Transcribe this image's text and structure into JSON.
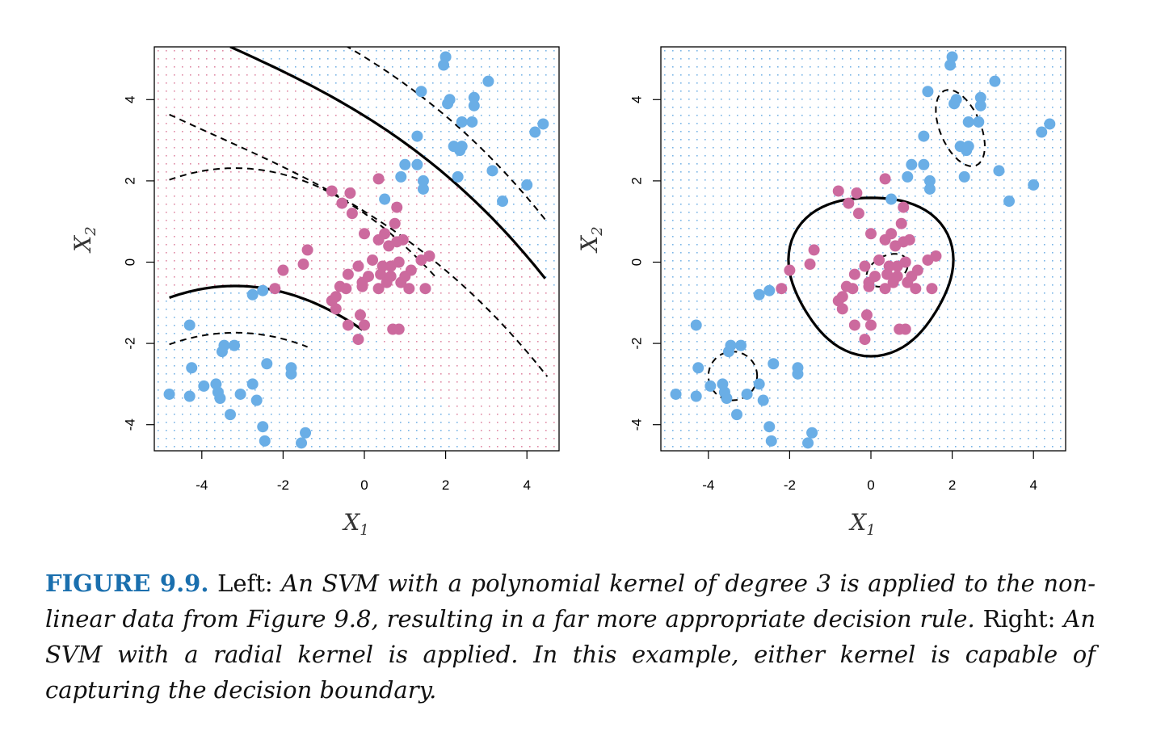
{
  "colors": {
    "blue_class": "#6aaee6",
    "magenta_class": "#cc6a9e",
    "grid_blue": "#78b4e6",
    "grid_red": "#e08aa5",
    "caption_label": "#1a6fae"
  },
  "caption": {
    "label": "FIGURE 9.9.",
    "left_word": "Left:",
    "left_text": "An SVM with a polynomial kernel of degree 3 is applied to the non-linear data from Figure 9.8, resulting in a far more appropriate decision rule.",
    "right_word": "Right:",
    "right_text": "An SVM with a radial kernel is applied. In this example, either kernel is capable of capturing the decision boundary."
  },
  "chart_data": [
    {
      "type": "scatter",
      "panel": "left",
      "kernel": "polynomial (degree 3)",
      "xlabel": "X1",
      "ylabel": "X2",
      "xlim": [
        -5.2,
        4.8
      ],
      "ylim": [
        -4.8,
        5.5
      ],
      "xticks": [
        "-4",
        "-2",
        "0",
        "2",
        "4"
      ],
      "yticks": [
        "-4",
        "-2",
        "0",
        "2",
        "4"
      ],
      "background_grid": "dotted blue/magenta class regions",
      "series": [
        {
          "color": "blue",
          "points": [
            [
              -4.8,
              -3.25
            ],
            [
              -4.3,
              -1.55
            ],
            [
              -4.25,
              -2.6
            ],
            [
              -4.3,
              -3.3
            ],
            [
              -3.95,
              -3.05
            ],
            [
              -3.65,
              -3.0
            ],
            [
              -3.6,
              -3.2
            ],
            [
              -3.55,
              -3.35
            ],
            [
              -3.5,
              -2.2
            ],
            [
              -3.45,
              -2.05
            ],
            [
              -3.3,
              -3.75
            ],
            [
              -3.2,
              -2.05
            ],
            [
              -3.05,
              -3.25
            ],
            [
              -2.75,
              -3.0
            ],
            [
              -2.65,
              -3.4
            ],
            [
              -2.5,
              -4.05
            ],
            [
              -2.45,
              -4.4
            ],
            [
              -2.4,
              -2.5
            ],
            [
              -1.8,
              -2.75
            ],
            [
              -1.8,
              -2.6
            ],
            [
              -1.55,
              -4.45
            ],
            [
              -1.45,
              -4.2
            ],
            [
              -2.75,
              -0.8
            ],
            [
              -2.5,
              -0.7
            ],
            [
              0.5,
              1.55
            ],
            [
              0.9,
              2.1
            ],
            [
              1.0,
              2.4
            ],
            [
              1.3,
              3.1
            ],
            [
              1.3,
              2.4
            ],
            [
              1.4,
              4.2
            ],
            [
              1.45,
              2.0
            ],
            [
              1.45,
              1.8
            ],
            [
              1.95,
              4.85
            ],
            [
              2.0,
              5.05
            ],
            [
              2.05,
              3.9
            ],
            [
              2.1,
              4.0
            ],
            [
              2.2,
              2.85
            ],
            [
              2.3,
              2.1
            ],
            [
              2.35,
              2.75
            ],
            [
              2.4,
              2.85
            ],
            [
              2.4,
              3.45
            ],
            [
              2.65,
              3.45
            ],
            [
              2.7,
              3.85
            ],
            [
              2.7,
              4.05
            ],
            [
              3.05,
              4.45
            ],
            [
              3.15,
              2.25
            ],
            [
              3.4,
              1.5
            ],
            [
              4.0,
              1.9
            ],
            [
              4.2,
              3.2
            ],
            [
              4.4,
              3.4
            ]
          ]
        },
        {
          "color": "magenta",
          "points": [
            [
              -2.2,
              -0.65
            ],
            [
              -2.0,
              -0.2
            ],
            [
              -1.5,
              -0.05
            ],
            [
              -1.4,
              0.3
            ],
            [
              -0.8,
              -0.95
            ],
            [
              -0.8,
              1.75
            ],
            [
              -0.7,
              -0.85
            ],
            [
              -0.7,
              -1.15
            ],
            [
              -0.6,
              -0.6
            ],
            [
              -0.55,
              1.45
            ],
            [
              -0.45,
              -0.65
            ],
            [
              -0.4,
              -1.55
            ],
            [
              -0.4,
              -0.3
            ],
            [
              -0.35,
              1.7
            ],
            [
              -0.3,
              1.2
            ],
            [
              -0.15,
              -1.9
            ],
            [
              -0.15,
              -0.1
            ],
            [
              -0.1,
              -1.3
            ],
            [
              -0.05,
              -0.6
            ],
            [
              -0.05,
              -0.5
            ],
            [
              0.0,
              0.7
            ],
            [
              0.0,
              -1.55
            ],
            [
              0.1,
              -0.35
            ],
            [
              0.2,
              0.05
            ],
            [
              0.35,
              2.05
            ],
            [
              0.35,
              0.55
            ],
            [
              0.35,
              -0.65
            ],
            [
              0.4,
              -0.3
            ],
            [
              0.45,
              -0.1
            ],
            [
              0.5,
              0.7
            ],
            [
              0.55,
              -0.5
            ],
            [
              0.6,
              0.4
            ],
            [
              0.65,
              -0.1
            ],
            [
              0.65,
              -0.35
            ],
            [
              0.7,
              -1.65
            ],
            [
              0.75,
              0.95
            ],
            [
              0.8,
              1.35
            ],
            [
              0.8,
              0.5
            ],
            [
              0.85,
              -1.65
            ],
            [
              0.85,
              0.0
            ],
            [
              0.9,
              -0.5
            ],
            [
              0.95,
              0.55
            ],
            [
              1.0,
              -0.35
            ],
            [
              1.1,
              -0.65
            ],
            [
              1.15,
              -0.2
            ],
            [
              1.4,
              0.05
            ],
            [
              1.5,
              -0.65
            ],
            [
              1.6,
              0.15
            ]
          ]
        }
      ],
      "boundary": "solid curves (decision boundary) with dashed margin curves"
    },
    {
      "type": "scatter",
      "panel": "right",
      "kernel": "radial",
      "xlabel": "X1",
      "ylabel": "X2",
      "xlim": [
        -5.2,
        4.8
      ],
      "ylim": [
        -4.8,
        5.5
      ],
      "xticks": [
        "-4",
        "-2",
        "0",
        "2",
        "4"
      ],
      "yticks": [
        "-4",
        "-2",
        "0",
        "2",
        "4"
      ],
      "background_grid": "dotted blue class region",
      "series": [
        {
          "color": "blue",
          "points": [
            [
              -4.8,
              -3.25
            ],
            [
              -4.3,
              -1.55
            ],
            [
              -4.25,
              -2.6
            ],
            [
              -4.3,
              -3.3
            ],
            [
              -3.95,
              -3.05
            ],
            [
              -3.65,
              -3.0
            ],
            [
              -3.6,
              -3.2
            ],
            [
              -3.55,
              -3.35
            ],
            [
              -3.5,
              -2.2
            ],
            [
              -3.45,
              -2.05
            ],
            [
              -3.3,
              -3.75
            ],
            [
              -3.2,
              -2.05
            ],
            [
              -3.05,
              -3.25
            ],
            [
              -2.75,
              -3.0
            ],
            [
              -2.65,
              -3.4
            ],
            [
              -2.5,
              -4.05
            ],
            [
              -2.45,
              -4.4
            ],
            [
              -2.4,
              -2.5
            ],
            [
              -1.8,
              -2.75
            ],
            [
              -1.8,
              -2.6
            ],
            [
              -1.55,
              -4.45
            ],
            [
              -1.45,
              -4.2
            ],
            [
              -2.75,
              -0.8
            ],
            [
              -2.5,
              -0.7
            ],
            [
              0.5,
              1.55
            ],
            [
              0.9,
              2.1
            ],
            [
              1.0,
              2.4
            ],
            [
              1.3,
              3.1
            ],
            [
              1.3,
              2.4
            ],
            [
              1.4,
              4.2
            ],
            [
              1.45,
              2.0
            ],
            [
              1.45,
              1.8
            ],
            [
              1.95,
              4.85
            ],
            [
              2.0,
              5.05
            ],
            [
              2.05,
              3.9
            ],
            [
              2.1,
              4.0
            ],
            [
              2.2,
              2.85
            ],
            [
              2.3,
              2.1
            ],
            [
              2.35,
              2.75
            ],
            [
              2.4,
              2.85
            ],
            [
              2.4,
              3.45
            ],
            [
              2.65,
              3.45
            ],
            [
              2.7,
              3.85
            ],
            [
              2.7,
              4.05
            ],
            [
              3.05,
              4.45
            ],
            [
              3.15,
              2.25
            ],
            [
              3.4,
              1.5
            ],
            [
              4.0,
              1.9
            ],
            [
              4.2,
              3.2
            ],
            [
              4.4,
              3.4
            ]
          ]
        },
        {
          "color": "magenta",
          "points": [
            [
              -2.2,
              -0.65
            ],
            [
              -2.0,
              -0.2
            ],
            [
              -1.5,
              -0.05
            ],
            [
              -1.4,
              0.3
            ],
            [
              -0.8,
              -0.95
            ],
            [
              -0.8,
              1.75
            ],
            [
              -0.7,
              -0.85
            ],
            [
              -0.7,
              -1.15
            ],
            [
              -0.6,
              -0.6
            ],
            [
              -0.55,
              1.45
            ],
            [
              -0.45,
              -0.65
            ],
            [
              -0.4,
              -1.55
            ],
            [
              -0.4,
              -0.3
            ],
            [
              -0.35,
              1.7
            ],
            [
              -0.3,
              1.2
            ],
            [
              -0.15,
              -1.9
            ],
            [
              -0.15,
              -0.1
            ],
            [
              -0.1,
              -1.3
            ],
            [
              -0.05,
              -0.6
            ],
            [
              -0.05,
              -0.5
            ],
            [
              0.0,
              0.7
            ],
            [
              0.0,
              -1.55
            ],
            [
              0.1,
              -0.35
            ],
            [
              0.2,
              0.05
            ],
            [
              0.35,
              2.05
            ],
            [
              0.35,
              0.55
            ],
            [
              0.35,
              -0.65
            ],
            [
              0.4,
              -0.3
            ],
            [
              0.45,
              -0.1
            ],
            [
              0.5,
              0.7
            ],
            [
              0.55,
              -0.5
            ],
            [
              0.6,
              0.4
            ],
            [
              0.65,
              -0.1
            ],
            [
              0.65,
              -0.35
            ],
            [
              0.7,
              -1.65
            ],
            [
              0.75,
              0.95
            ],
            [
              0.8,
              1.35
            ],
            [
              0.8,
              0.5
            ],
            [
              0.85,
              -1.65
            ],
            [
              0.85,
              0.0
            ],
            [
              0.9,
              -0.5
            ],
            [
              0.95,
              0.55
            ],
            [
              1.0,
              -0.35
            ],
            [
              1.1,
              -0.65
            ],
            [
              1.15,
              -0.2
            ],
            [
              1.4,
              0.05
            ],
            [
              1.5,
              -0.65
            ],
            [
              1.6,
              0.15
            ]
          ]
        }
      ],
      "boundary": "solid closed curve around magenta cluster with dashed margin contours"
    }
  ]
}
